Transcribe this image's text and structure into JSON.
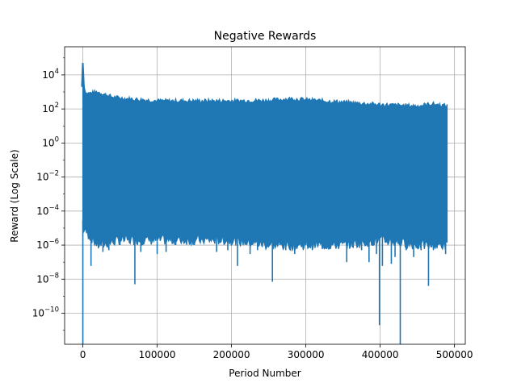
{
  "chart_data": {
    "type": "line",
    "title": "Negative Rewards",
    "xlabel": "Period Number",
    "ylabel": "Reward (Log Scale)",
    "yscale": "log",
    "xlim": [
      -24500,
      514500
    ],
    "ylim": [
      1.5e-12,
      450000.0
    ],
    "grid": true,
    "color": "#1f77b4",
    "x_ticks": [
      {
        "value": 0,
        "label": "0"
      },
      {
        "value": 100000,
        "label": "100000"
      },
      {
        "value": 200000,
        "label": "200000"
      },
      {
        "value": 300000,
        "label": "300000"
      },
      {
        "value": 400000,
        "label": "400000"
      },
      {
        "value": 500000,
        "label": "500000"
      }
    ],
    "y_ticks": [
      {
        "value": 1e-10,
        "base": "10",
        "exp": "−10"
      },
      {
        "value": 1e-08,
        "base": "10",
        "exp": "−8"
      },
      {
        "value": 1e-06,
        "base": "10",
        "exp": "−6"
      },
      {
        "value": 0.0001,
        "base": "10",
        "exp": "−4"
      },
      {
        "value": 0.01,
        "base": "10",
        "exp": "−2"
      },
      {
        "value": 1,
        "base": "10",
        "exp": "0"
      },
      {
        "value": 100,
        "base": "10",
        "exp": "2"
      },
      {
        "value": 10000,
        "base": "10",
        "exp": "4"
      }
    ],
    "series": [
      {
        "x_range": [
          0,
          490000
        ],
        "upper_envelope": [
          [
            0,
            50000
          ],
          [
            1500,
            2000
          ],
          [
            5000,
            800
          ],
          [
            20000,
            1000
          ],
          [
            40000,
            500
          ],
          [
            60000,
            400
          ],
          [
            80000,
            350
          ],
          [
            100000,
            300
          ],
          [
            150000,
            300
          ],
          [
            200000,
            300
          ],
          [
            250000,
            320
          ],
          [
            280000,
            400
          ],
          [
            300000,
            350
          ],
          [
            350000,
            250
          ],
          [
            400000,
            180
          ],
          [
            450000,
            150
          ],
          [
            470000,
            200
          ],
          [
            490000,
            150
          ]
        ],
        "lower_envelope": [
          [
            0,
            1e-05
          ],
          [
            20000,
            1e-06
          ],
          [
            50000,
            2e-06
          ],
          [
            100000,
            2e-06
          ],
          [
            150000,
            2e-06
          ],
          [
            200000,
            2e-06
          ],
          [
            250000,
            1e-06
          ],
          [
            300000,
            1e-06
          ],
          [
            350000,
            1e-06
          ],
          [
            400000,
            2e-06
          ],
          [
            450000,
            1e-06
          ],
          [
            490000,
            1e-06
          ]
        ],
        "spikes": [
          [
            0,
            1e-12
          ],
          [
            11000,
            6e-08
          ],
          [
            20000,
            2e-06
          ],
          [
            27000,
            4e-07
          ],
          [
            35000,
            5e-07
          ],
          [
            50000,
            1e-06
          ],
          [
            70000,
            5e-09
          ],
          [
            78000,
            4e-07
          ],
          [
            100000,
            3e-07
          ],
          [
            112000,
            4e-07
          ],
          [
            125000,
            1e-06
          ],
          [
            140000,
            2e-06
          ],
          [
            150000,
            1e-06
          ],
          [
            160000,
            2e-06
          ],
          [
            180000,
            4e-07
          ],
          [
            195000,
            5e-07
          ],
          [
            208000,
            6e-08
          ],
          [
            225000,
            3e-07
          ],
          [
            235000,
            5e-07
          ],
          [
            255000,
            7e-09
          ],
          [
            265000,
            1e-06
          ],
          [
            273000,
            5e-07
          ],
          [
            285000,
            3e-07
          ],
          [
            300000,
            1e-06
          ],
          [
            310000,
            2e-06
          ],
          [
            330000,
            1e-06
          ],
          [
            355000,
            1e-07
          ],
          [
            375000,
            5e-07
          ],
          [
            385000,
            1e-07
          ],
          [
            395000,
            3e-07
          ],
          [
            399000,
            2e-11
          ],
          [
            403000,
            6e-08
          ],
          [
            415000,
            8e-08
          ],
          [
            420000,
            2e-07
          ],
          [
            427000,
            1e-12
          ],
          [
            435000,
            5e-07
          ],
          [
            445000,
            2e-07
          ],
          [
            455000,
            5e-07
          ],
          [
            465000,
            4e-09
          ],
          [
            470000,
            2e-06
          ],
          [
            478000,
            1e-06
          ],
          [
            488000,
            3e-07
          ]
        ]
      }
    ]
  }
}
